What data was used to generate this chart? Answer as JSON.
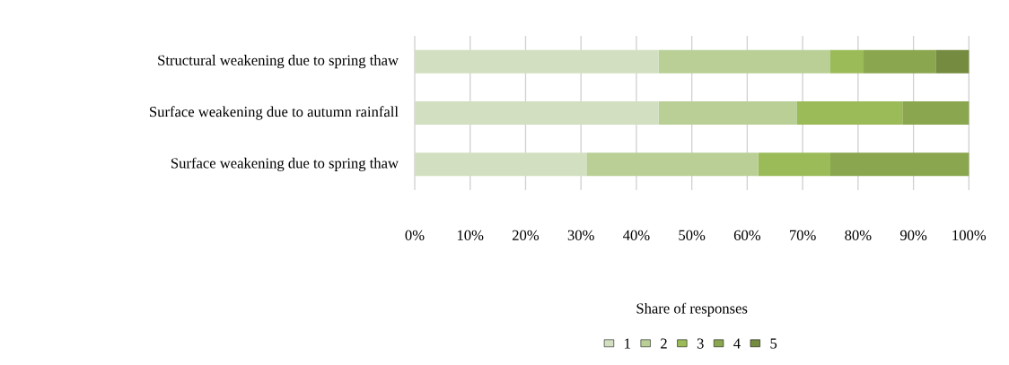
{
  "chart_data": {
    "type": "bar",
    "orientation": "horizontal",
    "stacked": true,
    "categories": [
      "Structural weakening due to spring thaw",
      "Surface weakening due to autumn rainfall",
      "Surface weakening due to spring thaw"
    ],
    "series": [
      {
        "name": "1",
        "color": "#d2dfc0",
        "values": [
          44,
          44,
          31
        ]
      },
      {
        "name": "2",
        "color": "#b9cf96",
        "values": [
          31,
          25,
          31
        ]
      },
      {
        "name": "3",
        "color": "#9bbb59",
        "values": [
          6,
          19,
          13
        ]
      },
      {
        "name": "4",
        "color": "#8aa64e",
        "values": [
          13,
          12,
          25
        ]
      },
      {
        "name": "5",
        "color": "#748b40",
        "values": [
          6,
          0,
          0
        ]
      }
    ],
    "xlim": [
      0,
      100
    ],
    "xticks": [
      {
        "value": 0,
        "label": "0%"
      },
      {
        "value": 10,
        "label": "10%"
      },
      {
        "value": 20,
        "label": "20%"
      },
      {
        "value": 30,
        "label": "30%"
      },
      {
        "value": 40,
        "label": "40%"
      },
      {
        "value": 50,
        "label": "50%"
      },
      {
        "value": 60,
        "label": "60%"
      },
      {
        "value": 70,
        "label": "70%"
      },
      {
        "value": 80,
        "label": "80%"
      },
      {
        "value": 90,
        "label": "90%"
      },
      {
        "value": 100,
        "label": "100%"
      }
    ],
    "legend_title": "Share of responses",
    "grid": "x",
    "legend": "bottom"
  }
}
